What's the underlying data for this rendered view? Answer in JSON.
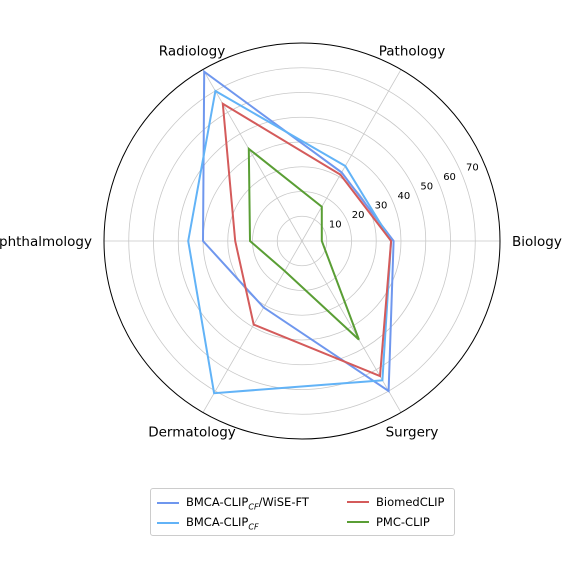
{
  "chart_data": {
    "type": "radar",
    "title": "",
    "axes": [
      "Biology",
      "Pathology",
      "Radiology",
      "Ophthalmology",
      "Dermatology",
      "Surgery"
    ],
    "radial_ticks": [
      "10",
      "20",
      "30",
      "40",
      "50",
      "60",
      "70"
    ],
    "rlim": [
      0,
      80
    ],
    "grid": true,
    "legend_position": "bottom",
    "series": [
      {
        "name": "BMCA-CLIP_CF/WiSE-FT",
        "name_main": "BMCA-CLIP",
        "name_sub": "CF",
        "name_suffix": "/WiSE-FT",
        "color": "#6f97ee",
        "values": [
          37,
          32,
          79,
          40,
          31,
          70
        ]
      },
      {
        "name": "BMCA-CLIP_CF",
        "name_main": "BMCA-CLIP",
        "name_sub": "CF",
        "name_suffix": "",
        "color": "#62b3f7",
        "values": [
          36,
          35,
          70,
          46,
          71,
          65
        ]
      },
      {
        "name": "BiomedCLIP",
        "name_main": "BiomedCLIP",
        "name_sub": "",
        "name_suffix": "",
        "color": "#d45b5b",
        "values": [
          36,
          31,
          64,
          27,
          39,
          63
        ]
      },
      {
        "name": "PMC-CLIP",
        "name_main": "PMC-CLIP",
        "name_sub": "",
        "name_suffix": "",
        "color": "#5a9e35",
        "values": [
          8,
          16,
          43,
          21,
          14,
          46
        ]
      }
    ]
  }
}
